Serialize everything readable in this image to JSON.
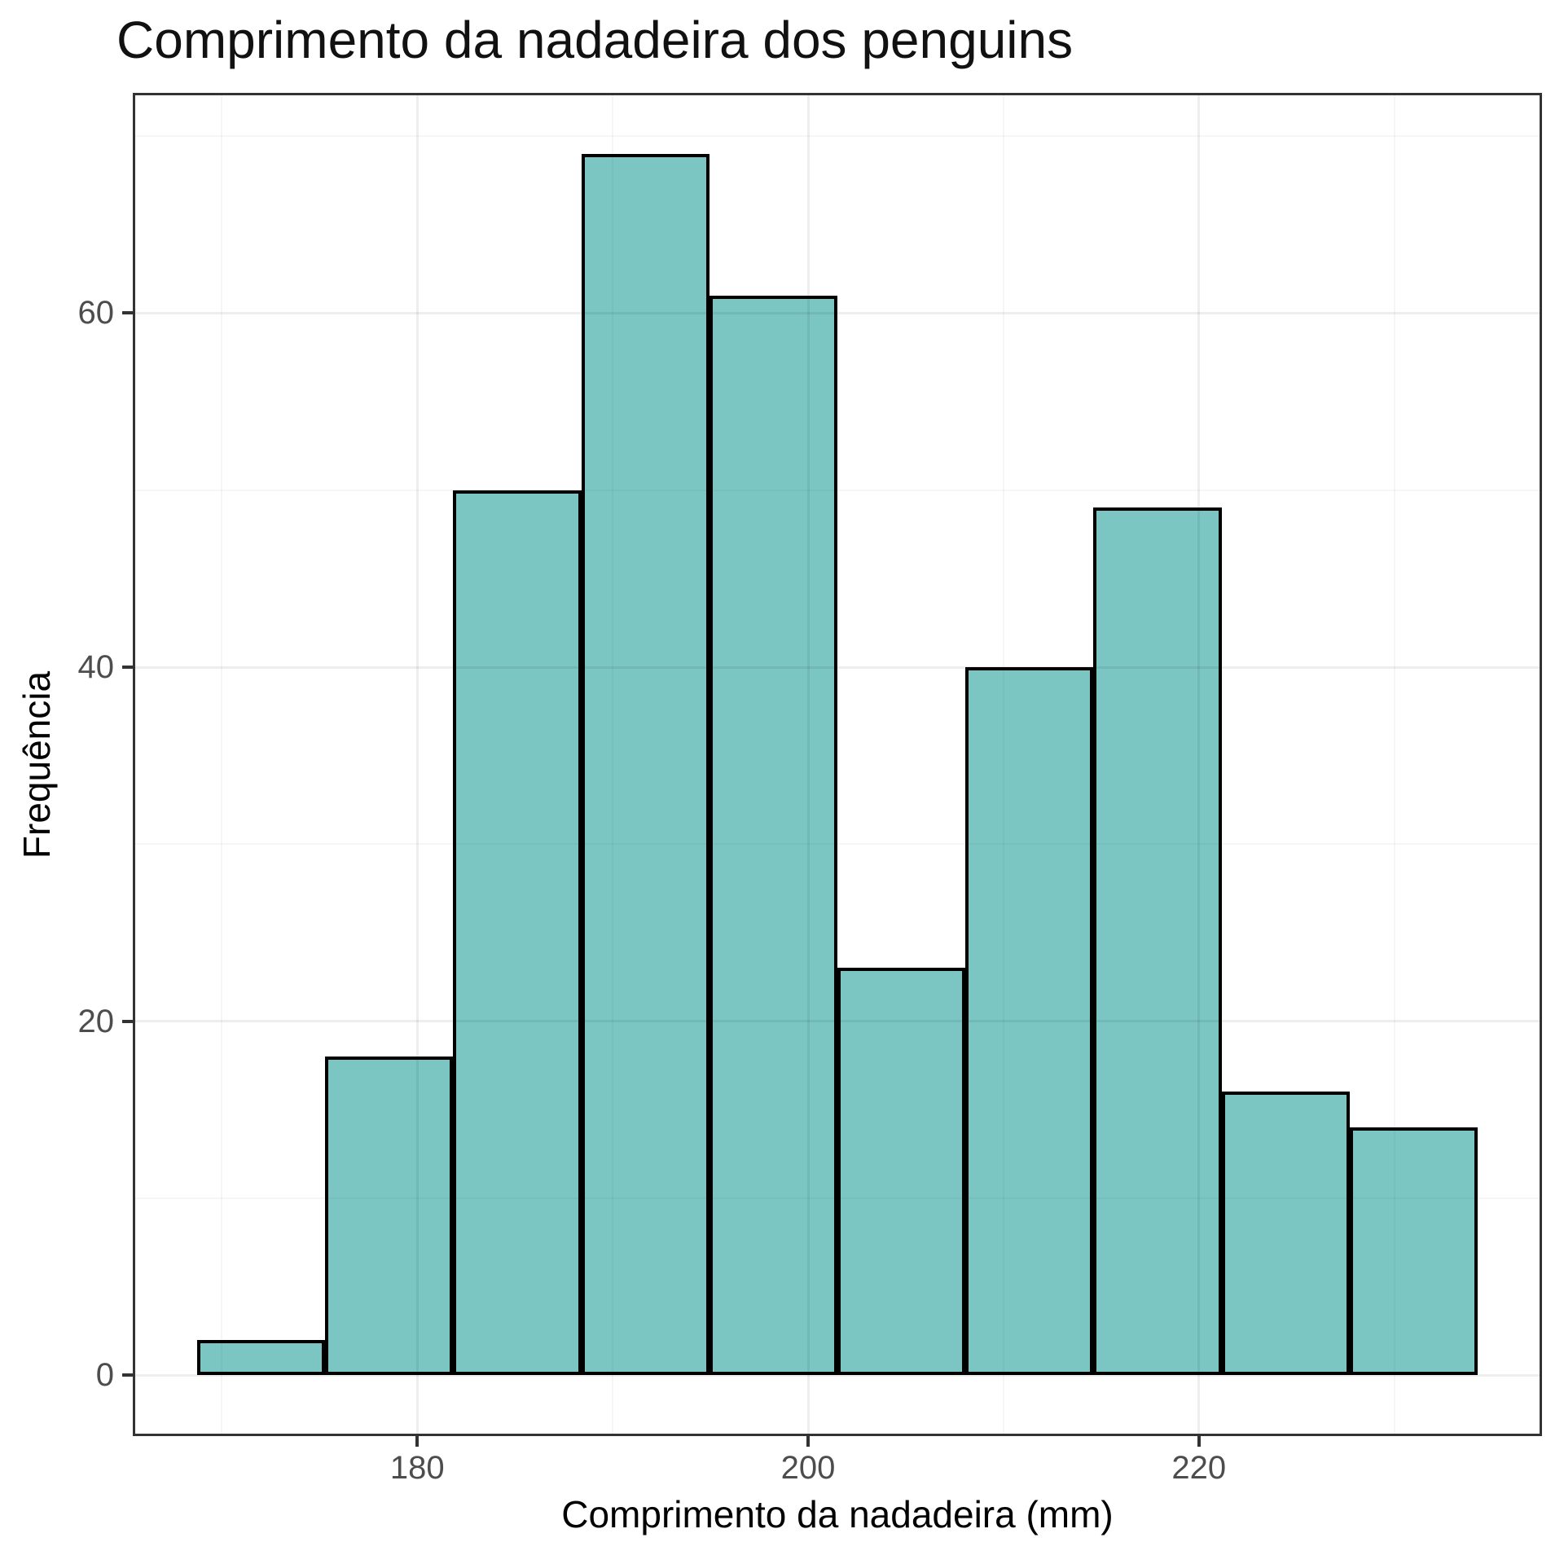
{
  "title": "Comprimento da nadadeira dos penguins",
  "chart_data": {
    "type": "bar",
    "subtype": "histogram",
    "title": "Comprimento da nadadeira dos penguins",
    "xlabel": "Comprimento da nadadeira (mm)",
    "ylabel": "Frequência",
    "bin_edges": [
      168.72,
      175.28,
      181.83,
      188.39,
      194.94,
      201.5,
      208.06,
      214.61,
      221.17,
      227.72,
      234.28
    ],
    "values": [
      2,
      18,
      50,
      69,
      61,
      23,
      40,
      49,
      16,
      14
    ],
    "total_count": 342,
    "x_major_ticks": [
      180,
      200,
      220
    ],
    "x_minor_ticks": [
      170,
      190,
      210,
      230
    ],
    "y_major_ticks": [
      0,
      20,
      40,
      60
    ],
    "y_minor_ticks": [
      10,
      30,
      50,
      70
    ],
    "xlim": [
      165.44,
      237.56
    ],
    "ylim": [
      -3.45,
      72.45
    ],
    "grid": "on",
    "legend": "none",
    "colors": {
      "bar_fill": "#7bc6c2",
      "bar_stroke": "#000000",
      "grid_major": "rgba(0,0,0,0.065)",
      "grid_minor": "rgba(0,0,0,0.035)",
      "panel_border": "#333333",
      "tick_mark": "#333333",
      "tick_label": "#4d4d4d",
      "title_color": "#111111"
    }
  }
}
